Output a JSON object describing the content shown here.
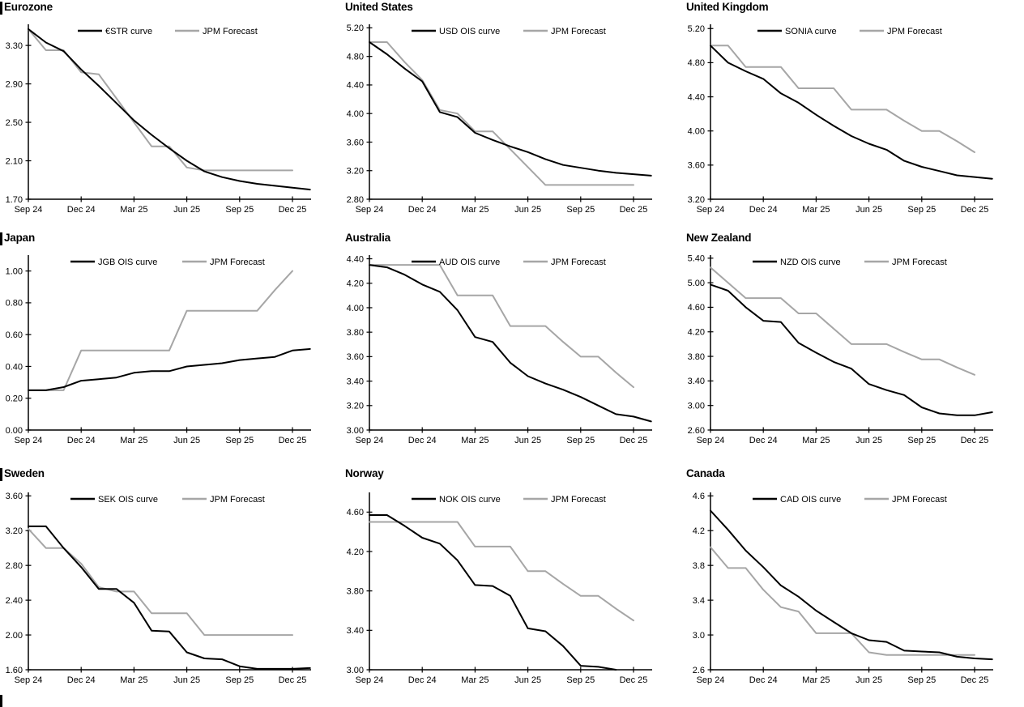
{
  "colors": {
    "market_line": "#000000",
    "forecast_line": "#a6a6a6",
    "text": "#000000",
    "background": "#ffffff"
  },
  "chart_data": [
    {
      "id": "eurozone",
      "title": "Eurozone",
      "type": "line",
      "grid": false,
      "legend_position": "top-center",
      "x_unit": "month",
      "x_tick_interval_months": 3,
      "x_tick_labels": [
        "Sep 24",
        "Dec 24",
        "Mar 25",
        "Jun 25",
        "Sep 25",
        "Dec 25"
      ],
      "y_axis": {
        "bottom": 1.7,
        "axis_top_value": 3.52,
        "tick_labels": [
          "1.70",
          "2.10",
          "2.50",
          "2.90",
          "3.30"
        ]
      },
      "series": [
        {
          "name": "€STR curve",
          "role": "market",
          "values": [
            3.47,
            3.33,
            3.24,
            3.05,
            2.88,
            2.7,
            2.52,
            2.37,
            2.23,
            2.1,
            1.99,
            1.93,
            1.89,
            1.86,
            1.84,
            1.82,
            1.8
          ]
        },
        {
          "name": "JPM Forecast",
          "role": "forecast",
          "values": [
            3.47,
            3.25,
            3.25,
            3.02,
            3.0,
            2.75,
            2.5,
            2.25,
            2.25,
            2.03,
            2.0,
            2.0,
            2.0,
            2.0,
            2.0,
            2.0
          ]
        }
      ]
    },
    {
      "id": "united-states",
      "title": "United States",
      "type": "line",
      "grid": false,
      "legend_position": "top-center",
      "x_unit": "month",
      "x_tick_interval_months": 3,
      "x_tick_labels": [
        "Sep 24",
        "Dec 24",
        "Mar 25",
        "Jun 25",
        "Sep 25",
        "Dec 25"
      ],
      "y_axis": {
        "bottom": 2.8,
        "axis_top_value": 5.25,
        "tick_labels": [
          "2.80",
          "3.20",
          "3.60",
          "4.00",
          "4.40",
          "4.80",
          "5.20"
        ]
      },
      "series": [
        {
          "name": "USD OIS curve",
          "role": "market",
          "values": [
            5.0,
            4.83,
            4.63,
            4.45,
            4.02,
            3.95,
            3.73,
            3.63,
            3.54,
            3.46,
            3.36,
            3.28,
            3.24,
            3.2,
            3.17,
            3.15,
            3.13
          ]
        },
        {
          "name": "JPM Forecast",
          "role": "forecast",
          "values": [
            5.0,
            5.0,
            4.72,
            4.47,
            4.05,
            4.0,
            3.75,
            3.75,
            3.5,
            3.25,
            3.0,
            3.0,
            3.0,
            3.0,
            3.0,
            3.0
          ]
        }
      ]
    },
    {
      "id": "united-kingdom",
      "title": "United Kingdom",
      "type": "line",
      "grid": false,
      "legend_position": "top-center",
      "x_unit": "month",
      "x_tick_interval_months": 3,
      "x_tick_labels": [
        "Sep 24",
        "Dec 24",
        "Mar 25",
        "Jun 25",
        "Sep 25",
        "Dec 25"
      ],
      "y_axis": {
        "bottom": 3.2,
        "axis_top_value": 5.25,
        "tick_labels": [
          "3.20",
          "3.60",
          "4.00",
          "4.40",
          "4.80",
          "5.20"
        ]
      },
      "series": [
        {
          "name": "SONIA curve",
          "role": "market",
          "values": [
            5.0,
            4.8,
            4.7,
            4.61,
            4.44,
            4.33,
            4.19,
            4.06,
            3.94,
            3.85,
            3.78,
            3.65,
            3.58,
            3.53,
            3.48,
            3.46,
            3.44
          ]
        },
        {
          "name": "JPM Forecast",
          "role": "forecast",
          "values": [
            5.0,
            5.0,
            4.75,
            4.75,
            4.75,
            4.5,
            4.5,
            4.5,
            4.25,
            4.25,
            4.25,
            4.12,
            4.0,
            4.0,
            3.88,
            3.75
          ]
        }
      ]
    },
    {
      "id": "japan",
      "title": "Japan",
      "type": "line",
      "grid": false,
      "legend_position": "top-center",
      "x_unit": "month",
      "x_tick_interval_months": 3,
      "x_tick_labels": [
        "Sep 24",
        "Dec 24",
        "Mar 25",
        "Jun 25",
        "Sep 25",
        "Dec 25"
      ],
      "y_axis": {
        "bottom": 0.0,
        "axis_top_value": 1.1,
        "tick_labels": [
          "0.00",
          "0.20",
          "0.40",
          "0.60",
          "0.80",
          "1.00"
        ]
      },
      "series": [
        {
          "name": "JGB OIS curve",
          "role": "market",
          "values": [
            0.25,
            0.25,
            0.27,
            0.31,
            0.32,
            0.33,
            0.36,
            0.37,
            0.37,
            0.4,
            0.41,
            0.42,
            0.44,
            0.45,
            0.46,
            0.5,
            0.51
          ]
        },
        {
          "name": "JPM Forecast",
          "role": "forecast",
          "values": [
            0.25,
            0.25,
            0.25,
            0.5,
            0.5,
            0.5,
            0.5,
            0.5,
            0.5,
            0.75,
            0.75,
            0.75,
            0.75,
            0.75,
            0.88,
            1.0
          ]
        }
      ]
    },
    {
      "id": "australia",
      "title": "Australia",
      "type": "line",
      "grid": false,
      "legend_position": "top-center",
      "x_unit": "month",
      "x_tick_interval_months": 3,
      "x_tick_labels": [
        "Sep 24",
        "Dec 24",
        "Mar 25",
        "Jun 25",
        "Sep 25",
        "Dec 25"
      ],
      "y_axis": {
        "bottom": 3.0,
        "axis_top_value": 4.43,
        "tick_labels": [
          "3.00",
          "3.20",
          "3.40",
          "3.60",
          "3.80",
          "4.00",
          "4.20",
          "4.40"
        ]
      },
      "series": [
        {
          "name": "AUD OIS curve",
          "role": "market",
          "values": [
            4.35,
            4.33,
            4.27,
            4.19,
            4.13,
            3.98,
            3.76,
            3.72,
            3.55,
            3.44,
            3.38,
            3.33,
            3.27,
            3.2,
            3.13,
            3.11,
            3.07
          ]
        },
        {
          "name": "JPM Forecast",
          "role": "forecast",
          "values": [
            4.35,
            4.35,
            4.35,
            4.35,
            4.35,
            4.1,
            4.1,
            4.1,
            3.85,
            3.85,
            3.85,
            3.72,
            3.6,
            3.6,
            3.47,
            3.35
          ]
        }
      ]
    },
    {
      "id": "new-zealand",
      "title": "New Zealand",
      "type": "line",
      "grid": false,
      "legend_position": "top-center",
      "x_unit": "month",
      "x_tick_interval_months": 3,
      "x_tick_labels": [
        "Sep 24",
        "Dec 24",
        "Mar 25",
        "Jun 25",
        "Sep 25",
        "Dec 25"
      ],
      "y_axis": {
        "bottom": 2.6,
        "axis_top_value": 5.45,
        "tick_labels": [
          "2.60",
          "3.00",
          "3.40",
          "3.80",
          "4.20",
          "4.60",
          "5.00",
          "5.40"
        ]
      },
      "series": [
        {
          "name": "NZD OIS curve",
          "role": "market",
          "values": [
            4.97,
            4.87,
            4.6,
            4.38,
            4.36,
            4.02,
            3.86,
            3.71,
            3.6,
            3.35,
            3.25,
            3.17,
            2.97,
            2.87,
            2.84,
            2.84,
            2.89
          ]
        },
        {
          "name": "JPM Forecast",
          "role": "forecast",
          "values": [
            5.25,
            5.0,
            4.75,
            4.75,
            4.75,
            4.5,
            4.5,
            4.25,
            4.0,
            4.0,
            4.0,
            3.87,
            3.75,
            3.75,
            3.62,
            3.5
          ]
        }
      ]
    },
    {
      "id": "sweden",
      "title": "Sweden",
      "type": "line",
      "grid": false,
      "legend_position": "top-center",
      "x_unit": "month",
      "x_tick_interval_months": 3,
      "x_tick_labels": [
        "Sep 24",
        "Dec 24",
        "Mar 25",
        "Jun 25",
        "Sep 25",
        "Dec 25"
      ],
      "y_axis": {
        "bottom": 1.6,
        "axis_top_value": 3.64,
        "tick_labels": [
          "1.60",
          "2.00",
          "2.40",
          "2.80",
          "3.20",
          "3.60"
        ]
      },
      "series": [
        {
          "name": "SEK OIS curve",
          "role": "market",
          "values": [
            3.25,
            3.25,
            3.0,
            2.78,
            2.53,
            2.53,
            2.37,
            2.05,
            2.04,
            1.8,
            1.73,
            1.72,
            1.64,
            1.61,
            1.61,
            1.61,
            1.62
          ]
        },
        {
          "name": "JPM Forecast",
          "role": "forecast",
          "values": [
            3.22,
            3.0,
            3.0,
            2.82,
            2.55,
            2.5,
            2.5,
            2.25,
            2.25,
            2.25,
            2.0,
            2.0,
            2.0,
            2.0,
            2.0,
            2.0
          ]
        }
      ]
    },
    {
      "id": "norway",
      "title": "Norway",
      "type": "line",
      "grid": false,
      "legend_position": "top-center",
      "x_unit": "month",
      "x_tick_interval_months": 3,
      "x_tick_labels": [
        "Sep 24",
        "Dec 24",
        "Mar 25",
        "Jun 25",
        "Sep 25",
        "Dec 25"
      ],
      "y_axis": {
        "bottom": 3.0,
        "axis_top_value": 4.8,
        "tick_labels": [
          "3.00",
          "3.40",
          "3.80",
          "4.20",
          "4.60"
        ]
      },
      "series": [
        {
          "name": "NOK OIS curve",
          "role": "market",
          "values": [
            4.57,
            4.57,
            4.46,
            4.34,
            4.28,
            4.11,
            3.86,
            3.85,
            3.75,
            3.42,
            3.39,
            3.24,
            3.04,
            3.03,
            3.0
          ]
        },
        {
          "name": "JPM Forecast",
          "role": "forecast",
          "values": [
            4.5,
            4.5,
            4.5,
            4.5,
            4.5,
            4.5,
            4.25,
            4.25,
            4.25,
            4.0,
            4.0,
            3.87,
            3.75,
            3.75,
            3.62,
            3.5
          ]
        }
      ]
    },
    {
      "id": "canada",
      "title": "Canada",
      "type": "line",
      "grid": false,
      "legend_position": "top-center",
      "x_unit": "month",
      "x_tick_interval_months": 3,
      "x_tick_labels": [
        "Sep 24",
        "Dec 24",
        "Mar 25",
        "Jun 25",
        "Sep 25",
        "Dec 25"
      ],
      "y_axis": {
        "bottom": 2.6,
        "axis_top_value": 4.64,
        "tick_labels": [
          "2.6",
          "3.0",
          "3.4",
          "3.8",
          "4.2",
          "4.6"
        ]
      },
      "series": [
        {
          "name": "CAD OIS curve",
          "role": "market",
          "values": [
            4.43,
            4.21,
            3.97,
            3.78,
            3.57,
            3.44,
            3.28,
            3.15,
            3.02,
            2.94,
            2.92,
            2.82,
            2.81,
            2.8,
            2.75,
            2.73,
            2.72
          ]
        },
        {
          "name": "JPM Forecast",
          "role": "forecast",
          "values": [
            4.01,
            3.77,
            3.77,
            3.52,
            3.32,
            3.27,
            3.02,
            3.02,
            3.02,
            2.8,
            2.77,
            2.77,
            2.77,
            2.77,
            2.77,
            2.77
          ]
        }
      ]
    }
  ]
}
